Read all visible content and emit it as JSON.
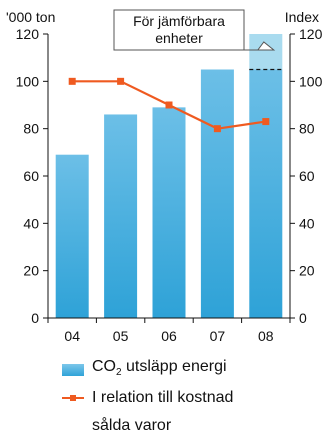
{
  "chart_data": {
    "type": "bar+line",
    "categories": [
      "04",
      "05",
      "06",
      "07",
      "08"
    ],
    "series": [
      {
        "name": "CO2 utsläpp energi",
        "kind": "bar",
        "values": [
          69,
          86,
          89,
          105,
          105
        ],
        "color": "#3aa8db"
      },
      {
        "name": "I relation till kostnad sålda varor",
        "kind": "line",
        "values": [
          100,
          100,
          90,
          80,
          83
        ],
        "color": "#ef5a20"
      }
    ],
    "comparable_extension": {
      "category": "08",
      "from": 105,
      "to": 120,
      "color": "#a9dbef"
    },
    "annotation": "För jämförbara enheter",
    "y_left_label": "'000 ton",
    "y_right_label": "Index",
    "ylim": [
      0,
      120
    ],
    "yticks": [
      0,
      20,
      40,
      60,
      80,
      100,
      120
    ]
  },
  "legend": {
    "bar_label_prefix": "CO",
    "bar_label_sub": "2",
    "bar_label_suffix": " utsläpp energi",
    "line_label_line1": "I relation till kostnad",
    "line_label_line2": "sålda varor"
  }
}
